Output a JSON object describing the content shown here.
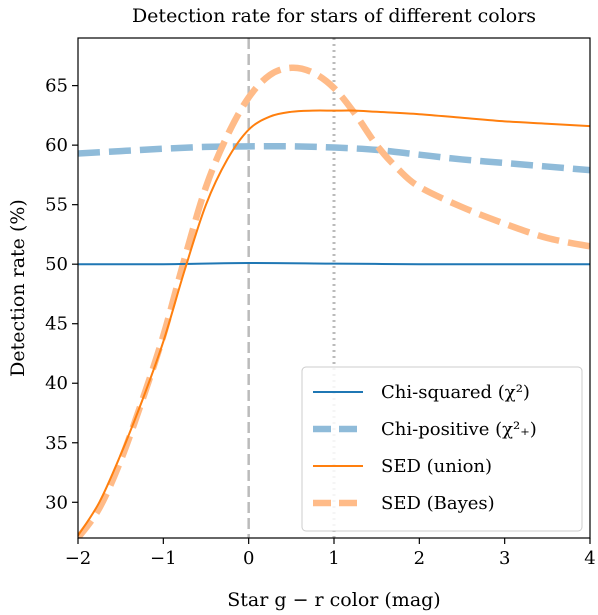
{
  "chart_data": {
    "type": "line",
    "title": "Detection rate for stars of different colors",
    "xlabel": "Star g − r color (mag)",
    "ylabel": "Detection rate (%)",
    "xlim": [
      -2,
      4
    ],
    "ylim": [
      27,
      69
    ],
    "xticks": [
      -2,
      -1,
      0,
      1,
      2,
      3,
      4
    ],
    "xtick_labels": [
      "−2",
      "−1",
      "0",
      "1",
      "2",
      "3",
      "4"
    ],
    "yticks": [
      30,
      35,
      40,
      45,
      50,
      55,
      60,
      65
    ],
    "ytick_labels": [
      "30",
      "35",
      "40",
      "45",
      "50",
      "55",
      "60",
      "65"
    ],
    "grid": false,
    "legend_position": "bottom-right",
    "vlines": [
      {
        "x": 0,
        "style": "dashed",
        "color": "#bbbbbb"
      },
      {
        "x": 1,
        "style": "dotted",
        "color": "#bbbbbb"
      }
    ],
    "series": [
      {
        "name": "Chi-squared (χ²)",
        "color": "#1f77b4",
        "style": "solid",
        "x": [
          -2,
          -1,
          0,
          1,
          2,
          3,
          4
        ],
        "y": [
          50.0,
          50.0,
          50.1,
          50.05,
          50.0,
          50.0,
          50.0
        ]
      },
      {
        "name": "Chi-positive (χ²₊)",
        "color": "#8fbbd9",
        "style": "dashed",
        "x": [
          -2,
          -1.5,
          -1,
          -0.5,
          0,
          0.5,
          1,
          1.5,
          2,
          2.5,
          3,
          3.5,
          4
        ],
        "y": [
          59.3,
          59.5,
          59.7,
          59.85,
          59.9,
          59.9,
          59.8,
          59.6,
          59.2,
          58.8,
          58.5,
          58.2,
          57.9
        ]
      },
      {
        "name": "SED (union)",
        "color": "#ff7f0e",
        "style": "solid",
        "x": [
          -2,
          -1.75,
          -1.5,
          -1.25,
          -1,
          -0.75,
          -0.5,
          -0.25,
          0,
          0.25,
          0.5,
          0.75,
          1,
          1.25,
          1.5,
          2,
          2.5,
          3,
          3.5,
          4
        ],
        "y": [
          27.2,
          30.0,
          34.0,
          38.5,
          43.5,
          49.5,
          55.0,
          58.8,
          61.3,
          62.4,
          62.8,
          62.9,
          62.9,
          62.9,
          62.8,
          62.6,
          62.3,
          62.0,
          61.8,
          61.6
        ]
      },
      {
        "name": "SED (Bayes)",
        "color": "#ffbb88",
        "style": "dashed",
        "x": [
          -2,
          -1.75,
          -1.5,
          -1.25,
          -1,
          -0.75,
          -0.5,
          -0.25,
          0,
          0.25,
          0.5,
          0.75,
          1,
          1.25,
          1.5,
          1.75,
          2,
          2.5,
          3,
          3.5,
          4
        ],
        "y": [
          27.0,
          29.5,
          33.5,
          38.5,
          44.0,
          50.5,
          56.5,
          60.8,
          64.0,
          65.9,
          66.5,
          66.1,
          64.8,
          62.6,
          60.0,
          58.0,
          56.5,
          54.8,
          53.4,
          52.2,
          51.5
        ]
      }
    ]
  }
}
